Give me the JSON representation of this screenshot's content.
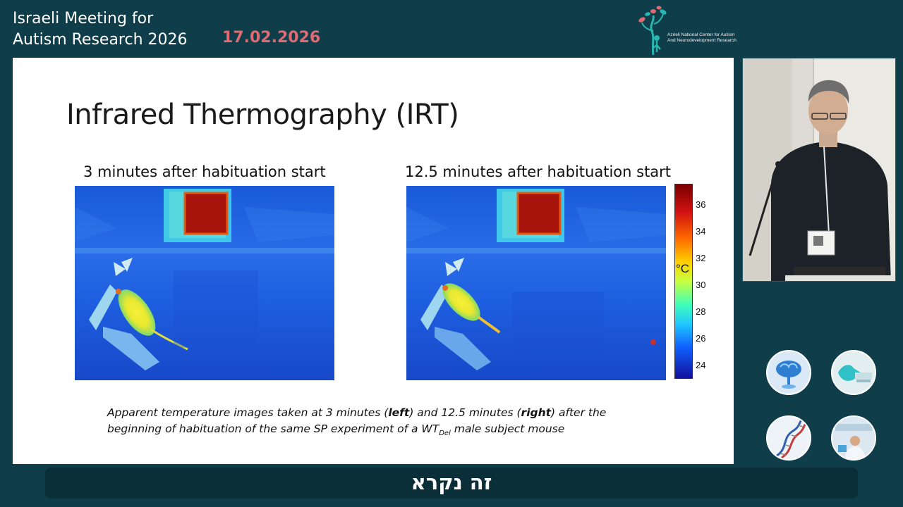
{
  "header": {
    "event_title_line1": "Israeli Meeting for",
    "event_title_line2": "Autism Research 2026",
    "event_date": "17.02.2026",
    "logo_text_line1": "Azrieli National Center for Autism",
    "logo_text_line2": "And Neurodevelopment Research"
  },
  "slide": {
    "title": "Infrared Thermography (IRT)",
    "left_image_label": "3 minutes after habituation start",
    "right_image_label": "12.5 minutes after habituation start",
    "colorbar": {
      "unit": "°C",
      "ticks": [
        "36",
        "34",
        "32",
        "30",
        "28",
        "26",
        "24"
      ]
    },
    "caption": {
      "part1": "Apparent temperature images taken at 3 minutes (",
      "left_word": "left",
      "part2": ") and 12.5 minutes (",
      "right_word": "right",
      "part3": ") after the",
      "line2_part1": "beginning of habituation of the same SP experiment of a WT",
      "subscript": "Del",
      "line2_part2": " male subject mouse"
    }
  },
  "subtitle": {
    "text": "זה נקרא"
  },
  "colors": {
    "background": "#0f3d4a",
    "date_accent": "#e06b73",
    "subtitle_bar": "#0a2f38"
  },
  "icons": [
    "tree-logo-icon",
    "brain-thumbnail",
    "lab-glove-thumbnail",
    "dna-thumbnail",
    "lab-worker-thumbnail"
  ]
}
